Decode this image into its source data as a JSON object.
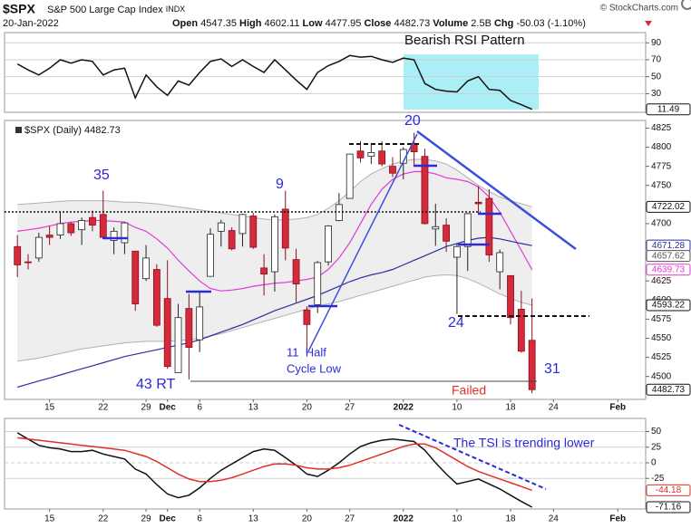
{
  "header": {
    "symbol": "$SPX",
    "name": "S&P 500 Large Cap Index",
    "exchange": "INDX",
    "date": "20-Jan-2022",
    "source": "© StockCharts.com",
    "quote": [
      {
        "label": "Open",
        "value": "4547.35"
      },
      {
        "label": "High",
        "value": "4602.11"
      },
      {
        "label": "Low",
        "value": "4477.95"
      },
      {
        "label": "Close",
        "value": "4482.73"
      },
      {
        "label": "Volume",
        "value": "2.5B"
      },
      {
        "label": "Chg",
        "value": "-50.03 (-1.10%)"
      }
    ]
  },
  "chart_data": [
    {
      "type": "line",
      "annotations": [
        "Bearish RSI Pattern"
      ],
      "x": [
        0,
        1,
        2,
        3,
        4,
        5,
        6,
        7,
        8,
        9,
        10,
        11,
        12,
        13,
        14,
        15,
        16,
        17,
        18,
        19,
        20,
        21,
        22,
        23,
        24,
        25,
        26,
        27,
        28,
        29,
        30,
        31,
        32,
        33,
        34,
        35,
        36,
        37,
        38,
        39,
        40,
        41,
        42,
        43,
        44,
        45,
        46,
        47,
        48
      ],
      "xlim": [
        -1.2,
        58.6
      ],
      "ylim": [
        8,
        102
      ],
      "yticks": [
        90,
        70,
        50,
        30
      ],
      "grid": true,
      "series": [
        {
          "color": "#111111",
          "values": [
            65,
            58,
            52,
            60,
            70,
            66,
            70,
            68,
            52,
            58,
            60,
            25,
            52,
            38,
            28,
            45,
            40,
            55,
            68,
            71,
            62,
            70,
            62,
            55,
            70,
            58,
            46,
            35,
            55,
            63,
            68,
            75,
            73,
            74,
            70,
            67,
            72,
            70,
            42,
            35,
            33,
            32,
            45,
            50,
            35,
            34,
            22,
            17,
            11.49
          ]
        }
      ]
    },
    {
      "type": "candlestick",
      "legend": "$SPX (Daily) 4482.73",
      "annotations": [
        "35",
        "9",
        "20",
        "24",
        "31",
        "43 RT",
        "11  Half",
        "Cycle Low",
        "Failed"
      ],
      "x": [
        0,
        1,
        2,
        3,
        4,
        5,
        6,
        7,
        8,
        9,
        10,
        11,
        12,
        13,
        14,
        15,
        16,
        17,
        18,
        19,
        20,
        21,
        22,
        23,
        24,
        25,
        26,
        27,
        28,
        29,
        30,
        31,
        32,
        33,
        34,
        35,
        36,
        37,
        38,
        39,
        40,
        41,
        42,
        43,
        44,
        45,
        46,
        47,
        48
      ],
      "open": [
        4670,
        4650,
        4655,
        4685,
        4685,
        4700,
        4692,
        4708,
        4712,
        4678,
        4675,
        4664,
        4628,
        4640,
        4602,
        4505,
        4589,
        4548,
        4631,
        4690,
        4691,
        4687,
        4710,
        4642,
        4637,
        4719,
        4653,
        4587,
        4594,
        4650,
        4704,
        4733,
        4795,
        4788,
        4795,
        4775,
        4779,
        4805,
        4788,
        4693,
        4698,
        4656,
        4670,
        4728,
        4733,
        4637,
        4632,
        4588,
        4547.35
      ],
      "high": [
        4685,
        4660,
        4688,
        4697,
        4715,
        4702,
        4708,
        4717,
        4743,
        4695,
        4702,
        4664,
        4672,
        4647,
        4652,
        4595,
        4608,
        4612,
        4694,
        4705,
        4695,
        4713,
        4714,
        4660,
        4712,
        4743,
        4667,
        4592,
        4651,
        4698,
        4740,
        4791,
        4808,
        4805,
        4808,
        4787,
        4800,
        4819,
        4798,
        4726,
        4707,
        4674,
        4714,
        4749,
        4745,
        4666,
        4632,
        4612,
        4602.11
      ],
      "low": [
        4630,
        4640,
        4650,
        4672,
        4680,
        4684,
        4672,
        4690,
        4680,
        4660,
        4660,
        4586,
        4625,
        4565,
        4510,
        4505,
        4496,
        4532,
        4631,
        4670,
        4665,
        4670,
        4667,
        4606,
        4611,
        4652,
        4597,
        4531,
        4583,
        4645,
        4703,
        4733,
        4780,
        4778,
        4775,
        4761,
        4758,
        4775,
        4699,
        4671,
        4663,
        4582,
        4638,
        4712,
        4650,
        4614,
        4568,
        4531,
        4477.95
      ],
      "close": [
        4646,
        4649,
        4682,
        4682,
        4700,
        4688,
        4704,
        4698,
        4682,
        4690,
        4701,
        4595,
        4655,
        4567,
        4513,
        4577,
        4538,
        4591,
        4686,
        4701,
        4667,
        4712,
        4669,
        4634,
        4709,
        4668,
        4621,
        4568,
        4649,
        4697,
        4725,
        4791,
        4786,
        4793,
        4778,
        4766,
        4797,
        4794,
        4700,
        4696,
        4677,
        4670,
        4713,
        4726,
        4659,
        4662,
        4577,
        4533,
        4482.73
      ],
      "up_color": "#ffffff",
      "down_color": "#d42a3a",
      "band": {
        "color": "#d9d9d9",
        "upper": [
          4725,
          4726,
          4727,
          4728,
          4729,
          4730,
          4730,
          4730,
          4730,
          4729,
          4728,
          4728,
          4727,
          4726,
          4724,
          4722,
          4720,
          4718,
          4716,
          4714,
          4712,
          4710,
          4708,
          4706,
          4705,
          4705,
          4706,
          4708,
          4712,
          4720,
          4730,
          4742,
          4755,
          4765,
          4772,
          4778,
          4782,
          4784,
          4784,
          4782,
          4778,
          4770,
          4760,
          4750,
          4742,
          4735,
          4730,
          4726,
          4722.02
        ],
        "lower": [
          4520,
          4522,
          4524,
          4527,
          4530,
          4533,
          4536,
          4538,
          4540,
          4542,
          4544,
          4545,
          4546,
          4546,
          4546,
          4547,
          4548,
          4550,
          4553,
          4556,
          4560,
          4564,
          4568,
          4572,
          4576,
          4580,
          4584,
          4588,
          4592,
          4595,
          4598,
          4602,
          4606,
          4610,
          4614,
          4618,
          4622,
          4626,
          4630,
          4632,
          4633,
          4632,
          4628,
          4622,
          4615,
          4608,
          4602,
          4597,
          4593.22
        ]
      },
      "series": [
        {
          "color": "#e23ad6",
          "values": [
            4690,
            4692,
            4694,
            4697,
            4700,
            4702,
            4703,
            4704,
            4704,
            4703,
            4702,
            4695,
            4690,
            4680,
            4668,
            4652,
            4638,
            4625,
            4615,
            4612,
            4613,
            4615,
            4618,
            4620,
            4622,
            4623,
            4625,
            4627,
            4630,
            4640,
            4655,
            4675,
            4700,
            4725,
            4745,
            4758,
            4765,
            4768,
            4768,
            4765,
            4760,
            4758,
            4755,
            4748,
            4735,
            4715,
            4690,
            4665,
            4639.73
          ]
        },
        {
          "color": "#2b2f9e",
          "values": [
            4486,
            4490,
            4494,
            4498,
            4502,
            4506,
            4510,
            4514,
            4518,
            4522,
            4526,
            4529,
            4532,
            4535,
            4538,
            4541,
            4544,
            4548,
            4553,
            4558,
            4563,
            4568,
            4574,
            4580,
            4586,
            4591,
            4596,
            4601,
            4606,
            4612,
            4618,
            4624,
            4629,
            4633,
            4636,
            4640,
            4646,
            4652,
            4658,
            4664,
            4670,
            4674,
            4678,
            4681,
            4682,
            4680,
            4677,
            4674,
            4671.28
          ]
        }
      ],
      "extra_labels": [
        4657.62
      ],
      "xlim": [
        -1.2,
        58.6
      ],
      "ylim": [
        4470,
        4835
      ],
      "yticks": [
        4825,
        4800,
        4775,
        4750,
        4700,
        4625,
        4600,
        4575,
        4550,
        4525,
        4500
      ],
      "xticks": [
        {
          "value": 3,
          "label": "15"
        },
        {
          "value": 8,
          "label": "22"
        },
        {
          "value": 12,
          "label": "29"
        },
        {
          "value": 14,
          "label": "Dec"
        },
        {
          "value": 17,
          "label": "6"
        },
        {
          "value": 22,
          "label": "13"
        },
        {
          "value": 27,
          "label": "20"
        },
        {
          "value": 31,
          "label": "27"
        },
        {
          "value": 36,
          "label": "2022"
        },
        {
          "value": 41,
          "label": "10"
        },
        {
          "value": 46,
          "label": "18"
        },
        {
          "value": 50,
          "label": "24"
        },
        {
          "value": 56,
          "label": "Feb"
        }
      ]
    },
    {
      "type": "line",
      "annotations": [
        "The TSI is trending lower"
      ],
      "x": [
        0,
        1,
        2,
        3,
        4,
        5,
        6,
        7,
        8,
        9,
        10,
        11,
        12,
        13,
        14,
        15,
        16,
        17,
        18,
        19,
        20,
        21,
        22,
        23,
        24,
        25,
        26,
        27,
        28,
        29,
        30,
        31,
        32,
        33,
        34,
        35,
        36,
        37,
        38,
        39,
        40,
        41,
        42,
        43,
        44,
        45,
        46,
        47,
        48
      ],
      "xlim": [
        -1.2,
        58.6
      ],
      "ylim": [
        -74,
        71
      ],
      "yticks": [
        50,
        25,
        0,
        -25
      ],
      "grid": true,
      "series": [
        {
          "color": "#111111",
          "values": [
            48,
            38,
            28,
            24,
            22,
            18,
            18,
            20,
            14,
            10,
            6,
            -10,
            -18,
            -35,
            -50,
            -56,
            -52,
            -40,
            -25,
            -12,
            -2,
            8,
            18,
            22,
            20,
            8,
            -4,
            -18,
            -22,
            -12,
            0,
            14,
            26,
            32,
            36,
            38,
            36,
            34,
            20,
            0,
            -18,
            -34,
            -30,
            -26,
            -34,
            -42,
            -52,
            -62,
            -71.16
          ]
        },
        {
          "color": "#e0302a",
          "values": [
            40,
            38,
            36,
            34,
            32,
            30,
            28,
            26,
            24,
            22,
            20,
            15,
            10,
            2,
            -8,
            -18,
            -26,
            -30,
            -30,
            -28,
            -24,
            -18,
            -12,
            -6,
            -2,
            -2,
            -4,
            -8,
            -10,
            -10,
            -8,
            -4,
            2,
            8,
            14,
            20,
            26,
            30,
            30,
            24,
            14,
            4,
            -6,
            -14,
            -20,
            -26,
            -32,
            -38,
            -44.18
          ]
        }
      ],
      "xticks": [
        {
          "value": 3,
          "label": "15"
        },
        {
          "value": 8,
          "label": "22"
        },
        {
          "value": 12,
          "label": "29"
        },
        {
          "value": 14,
          "label": "Dec"
        },
        {
          "value": 17,
          "label": "6"
        },
        {
          "value": 22,
          "label": "13"
        },
        {
          "value": 27,
          "label": "20"
        },
        {
          "value": 31,
          "label": "27"
        },
        {
          "value": 36,
          "label": "2022"
        },
        {
          "value": 41,
          "label": "10"
        },
        {
          "value": 46,
          "label": "18"
        },
        {
          "value": 50,
          "label": "24"
        },
        {
          "value": 56,
          "label": "Feb"
        }
      ]
    }
  ]
}
